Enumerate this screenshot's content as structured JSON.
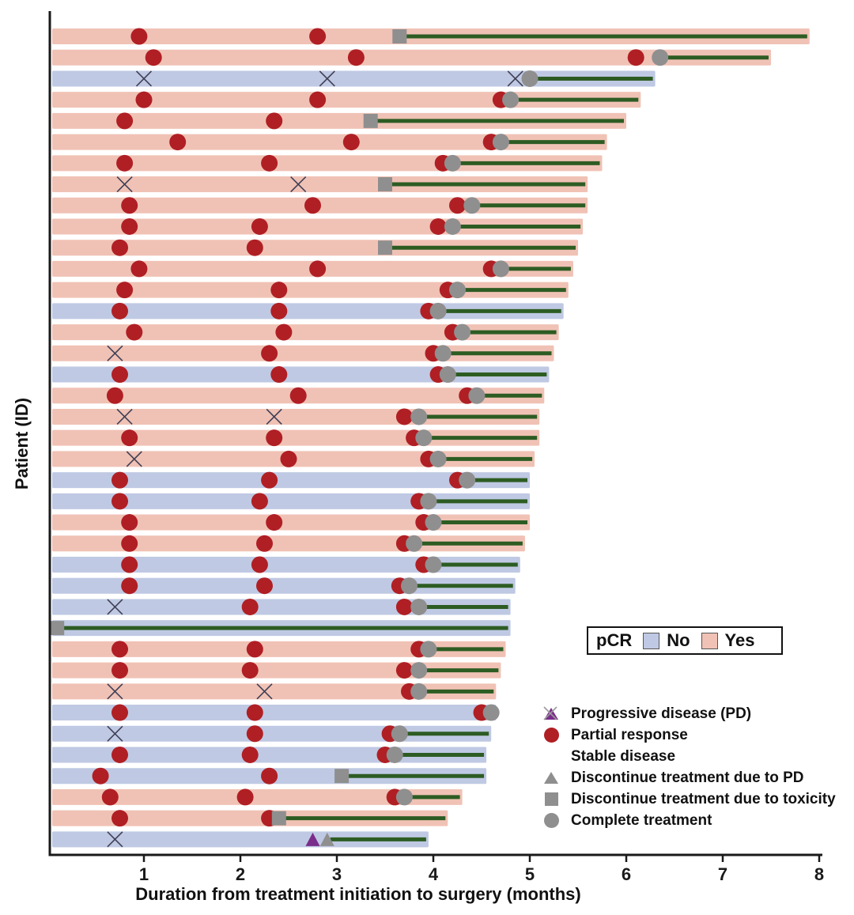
{
  "axes": {
    "xlabel": "Duration from treatment initiation to surgery (months)",
    "ylabel": "Patient (ID)",
    "xticks": [
      1,
      2,
      3,
      4,
      5,
      6,
      7,
      8
    ],
    "xlim": [
      0,
      8.05
    ]
  },
  "colors": {
    "pcr_yes_bar": "#f0c2b5",
    "pcr_no_bar": "#bfc9e3",
    "partial_response": "#b01f24",
    "gray_marker": "#8f8f8f",
    "progressive_disease": "#7a2d8a",
    "stable_disease_x": "#3f3f55",
    "treatment_line": "#2d5c23",
    "axis": "#1a1a1a"
  },
  "pcr_legend": {
    "title": "pCR",
    "no_label": "No",
    "yes_label": "Yes"
  },
  "marker_legend": {
    "items": [
      {
        "icon": "purple-triangle",
        "label": "Progressive disease (PD)"
      },
      {
        "icon": "red-circle",
        "label": "Partial response"
      },
      {
        "icon": "x-cross",
        "label": "Stable disease"
      },
      {
        "icon": "gray-triangle",
        "label": "Discontinue treatment due to PD"
      },
      {
        "icon": "gray-square",
        "label": "Discontinue treatment due to toxicity"
      },
      {
        "icon": "gray-circle",
        "label": "Complete treatment"
      }
    ]
  },
  "chart_data": {
    "type": "bar",
    "subtype": "swimmer",
    "title": "",
    "xlabel": "Duration from treatment initiation to surgery (months)",
    "ylabel": "Patient (ID)",
    "xlim": [
      0,
      8.05
    ],
    "grid": false,
    "event_types": {
      "pr": "Partial response",
      "sd": "Stable disease",
      "pd": "Progressive disease (PD)",
      "ct": "Complete treatment",
      "dtox": "Discontinue treatment due to toxicity",
      "dpd": "Discontinue treatment due to PD"
    },
    "patients": [
      {
        "pcr": "Yes",
        "bar_end": 7.9,
        "line_start": 3.65,
        "events": [
          [
            0.95,
            "pr"
          ],
          [
            2.8,
            "pr"
          ],
          [
            3.65,
            "dtox"
          ]
        ]
      },
      {
        "pcr": "Yes",
        "bar_end": 7.5,
        "line_start": 6.35,
        "events": [
          [
            1.1,
            "pr"
          ],
          [
            3.2,
            "pr"
          ],
          [
            6.1,
            "pr"
          ],
          [
            6.35,
            "ct"
          ]
        ]
      },
      {
        "pcr": "No",
        "bar_end": 6.3,
        "line_start": 5.0,
        "events": [
          [
            1.0,
            "sd"
          ],
          [
            2.9,
            "sd"
          ],
          [
            4.85,
            "sd"
          ],
          [
            5.0,
            "ct"
          ]
        ]
      },
      {
        "pcr": "Yes",
        "bar_end": 6.15,
        "line_start": 4.8,
        "events": [
          [
            1.0,
            "pr"
          ],
          [
            2.8,
            "pr"
          ],
          [
            4.7,
            "pr"
          ],
          [
            4.8,
            "ct"
          ]
        ]
      },
      {
        "pcr": "Yes",
        "bar_end": 6.0,
        "line_start": 3.35,
        "events": [
          [
            0.8,
            "pr"
          ],
          [
            2.35,
            "pr"
          ],
          [
            3.35,
            "dtox"
          ]
        ]
      },
      {
        "pcr": "Yes",
        "bar_end": 5.8,
        "line_start": 4.7,
        "events": [
          [
            1.35,
            "pr"
          ],
          [
            3.15,
            "pr"
          ],
          [
            4.6,
            "pr"
          ],
          [
            4.7,
            "ct"
          ]
        ]
      },
      {
        "pcr": "Yes",
        "bar_end": 5.75,
        "line_start": 4.2,
        "events": [
          [
            0.8,
            "pr"
          ],
          [
            2.3,
            "pr"
          ],
          [
            4.1,
            "pr"
          ],
          [
            4.2,
            "ct"
          ]
        ]
      },
      {
        "pcr": "Yes",
        "bar_end": 5.6,
        "line_start": 3.5,
        "events": [
          [
            0.8,
            "sd"
          ],
          [
            2.6,
            "sd"
          ],
          [
            3.5,
            "dtox"
          ]
        ]
      },
      {
        "pcr": "Yes",
        "bar_end": 5.6,
        "line_start": 4.4,
        "events": [
          [
            0.85,
            "pr"
          ],
          [
            2.75,
            "pr"
          ],
          [
            4.25,
            "pr"
          ],
          [
            4.4,
            "ct"
          ]
        ]
      },
      {
        "pcr": "Yes",
        "bar_end": 5.55,
        "line_start": 4.2,
        "events": [
          [
            0.85,
            "pr"
          ],
          [
            2.2,
            "pr"
          ],
          [
            4.05,
            "pr"
          ],
          [
            4.2,
            "ct"
          ]
        ]
      },
      {
        "pcr": "Yes",
        "bar_end": 5.5,
        "line_start": 3.5,
        "events": [
          [
            0.75,
            "pr"
          ],
          [
            2.15,
            "pr"
          ],
          [
            3.5,
            "dtox"
          ]
        ]
      },
      {
        "pcr": "Yes",
        "bar_end": 5.45,
        "line_start": 4.7,
        "events": [
          [
            0.95,
            "pr"
          ],
          [
            2.8,
            "pr"
          ],
          [
            4.6,
            "pr"
          ],
          [
            4.7,
            "ct"
          ]
        ]
      },
      {
        "pcr": "Yes",
        "bar_end": 5.4,
        "line_start": 4.25,
        "events": [
          [
            0.8,
            "pr"
          ],
          [
            2.4,
            "pr"
          ],
          [
            4.15,
            "pr"
          ],
          [
            4.25,
            "ct"
          ]
        ]
      },
      {
        "pcr": "No",
        "bar_end": 5.35,
        "line_start": 4.05,
        "events": [
          [
            0.75,
            "pr"
          ],
          [
            2.4,
            "pr"
          ],
          [
            3.95,
            "pr"
          ],
          [
            4.05,
            "ct"
          ]
        ]
      },
      {
        "pcr": "Yes",
        "bar_end": 5.3,
        "line_start": 4.3,
        "events": [
          [
            0.9,
            "pr"
          ],
          [
            2.45,
            "pr"
          ],
          [
            4.2,
            "pr"
          ],
          [
            4.3,
            "ct"
          ]
        ]
      },
      {
        "pcr": "Yes",
        "bar_end": 5.25,
        "line_start": 4.1,
        "events": [
          [
            0.7,
            "sd"
          ],
          [
            2.3,
            "pr"
          ],
          [
            4.0,
            "pr"
          ],
          [
            4.1,
            "ct"
          ]
        ]
      },
      {
        "pcr": "No",
        "bar_end": 5.2,
        "line_start": 4.15,
        "events": [
          [
            0.75,
            "pr"
          ],
          [
            2.4,
            "pr"
          ],
          [
            4.05,
            "pr"
          ],
          [
            4.15,
            "ct"
          ]
        ]
      },
      {
        "pcr": "Yes",
        "bar_end": 5.15,
        "line_start": 4.45,
        "events": [
          [
            0.7,
            "pr"
          ],
          [
            2.6,
            "pr"
          ],
          [
            4.35,
            "pr"
          ],
          [
            4.45,
            "ct"
          ]
        ]
      },
      {
        "pcr": "Yes",
        "bar_end": 5.1,
        "line_start": 3.85,
        "events": [
          [
            0.8,
            "sd"
          ],
          [
            2.35,
            "sd"
          ],
          [
            3.7,
            "pr"
          ],
          [
            3.85,
            "ct"
          ]
        ]
      },
      {
        "pcr": "Yes",
        "bar_end": 5.1,
        "line_start": 3.9,
        "events": [
          [
            0.85,
            "pr"
          ],
          [
            2.35,
            "pr"
          ],
          [
            3.8,
            "pr"
          ],
          [
            3.9,
            "ct"
          ]
        ]
      },
      {
        "pcr": "Yes",
        "bar_end": 5.05,
        "line_start": 4.05,
        "events": [
          [
            0.9,
            "sd"
          ],
          [
            2.5,
            "pr"
          ],
          [
            3.95,
            "pr"
          ],
          [
            4.05,
            "ct"
          ]
        ]
      },
      {
        "pcr": "No",
        "bar_end": 5.0,
        "line_start": 4.35,
        "events": [
          [
            0.75,
            "pr"
          ],
          [
            2.3,
            "pr"
          ],
          [
            4.25,
            "pr"
          ],
          [
            4.35,
            "ct"
          ]
        ]
      },
      {
        "pcr": "No",
        "bar_end": 5.0,
        "line_start": 3.95,
        "events": [
          [
            0.75,
            "pr"
          ],
          [
            2.2,
            "pr"
          ],
          [
            3.85,
            "pr"
          ],
          [
            3.95,
            "ct"
          ]
        ]
      },
      {
        "pcr": "Yes",
        "bar_end": 5.0,
        "line_start": 4.0,
        "events": [
          [
            0.85,
            "pr"
          ],
          [
            2.35,
            "pr"
          ],
          [
            3.9,
            "pr"
          ],
          [
            4.0,
            "ct"
          ]
        ]
      },
      {
        "pcr": "Yes",
        "bar_end": 4.95,
        "line_start": 3.8,
        "events": [
          [
            0.85,
            "pr"
          ],
          [
            2.25,
            "pr"
          ],
          [
            3.7,
            "pr"
          ],
          [
            3.8,
            "ct"
          ]
        ]
      },
      {
        "pcr": "No",
        "bar_end": 4.9,
        "line_start": 4.0,
        "events": [
          [
            0.85,
            "pr"
          ],
          [
            2.2,
            "pr"
          ],
          [
            3.9,
            "pr"
          ],
          [
            4.0,
            "ct"
          ]
        ]
      },
      {
        "pcr": "No",
        "bar_end": 4.85,
        "line_start": 3.75,
        "events": [
          [
            0.85,
            "pr"
          ],
          [
            2.25,
            "pr"
          ],
          [
            3.65,
            "pr"
          ],
          [
            3.75,
            "ct"
          ]
        ]
      },
      {
        "pcr": "No",
        "bar_end": 4.8,
        "line_start": 3.85,
        "events": [
          [
            0.7,
            "sd"
          ],
          [
            2.1,
            "pr"
          ],
          [
            3.7,
            "pr"
          ],
          [
            3.85,
            "ct"
          ]
        ]
      },
      {
        "pcr": "No",
        "bar_end": 4.8,
        "line_start": 0.1,
        "events": [
          [
            0.1,
            "dtox"
          ]
        ]
      },
      {
        "pcr": "Yes",
        "bar_end": 4.75,
        "line_start": 3.95,
        "events": [
          [
            0.75,
            "pr"
          ],
          [
            2.15,
            "pr"
          ],
          [
            3.85,
            "pr"
          ],
          [
            3.95,
            "ct"
          ]
        ]
      },
      {
        "pcr": "Yes",
        "bar_end": 4.7,
        "line_start": 3.85,
        "events": [
          [
            0.75,
            "pr"
          ],
          [
            2.1,
            "pr"
          ],
          [
            3.7,
            "pr"
          ],
          [
            3.85,
            "ct"
          ]
        ]
      },
      {
        "pcr": "Yes",
        "bar_end": 4.65,
        "line_start": 3.85,
        "events": [
          [
            0.7,
            "sd"
          ],
          [
            2.25,
            "sd"
          ],
          [
            3.75,
            "pr"
          ],
          [
            3.85,
            "ct"
          ]
        ]
      },
      {
        "pcr": "No",
        "bar_end": 4.65,
        "line_start": 4.6,
        "events": [
          [
            0.75,
            "pr"
          ],
          [
            2.15,
            "pr"
          ],
          [
            4.5,
            "pr"
          ],
          [
            4.6,
            "ct"
          ]
        ]
      },
      {
        "pcr": "No",
        "bar_end": 4.6,
        "line_start": 3.65,
        "events": [
          [
            0.7,
            "sd"
          ],
          [
            2.15,
            "pr"
          ],
          [
            3.55,
            "pr"
          ],
          [
            3.65,
            "ct"
          ]
        ]
      },
      {
        "pcr": "No",
        "bar_end": 4.55,
        "line_start": 3.6,
        "events": [
          [
            0.75,
            "pr"
          ],
          [
            2.1,
            "pr"
          ],
          [
            3.5,
            "pr"
          ],
          [
            3.6,
            "ct"
          ]
        ]
      },
      {
        "pcr": "No",
        "bar_end": 4.55,
        "line_start": 3.05,
        "events": [
          [
            0.55,
            "pr"
          ],
          [
            2.3,
            "pr"
          ],
          [
            3.05,
            "dtox"
          ]
        ]
      },
      {
        "pcr": "Yes",
        "bar_end": 4.3,
        "line_start": 3.7,
        "events": [
          [
            0.65,
            "pr"
          ],
          [
            2.05,
            "pr"
          ],
          [
            3.6,
            "pr"
          ],
          [
            3.7,
            "ct"
          ]
        ]
      },
      {
        "pcr": "Yes",
        "bar_end": 4.15,
        "line_start": 2.4,
        "events": [
          [
            0.75,
            "pr"
          ],
          [
            2.3,
            "pr"
          ],
          [
            2.4,
            "dtox"
          ]
        ]
      },
      {
        "pcr": "No",
        "bar_end": 3.95,
        "line_start": 2.9,
        "events": [
          [
            0.7,
            "sd"
          ],
          [
            2.75,
            "pd"
          ],
          [
            2.9,
            "dpd"
          ]
        ]
      }
    ]
  }
}
